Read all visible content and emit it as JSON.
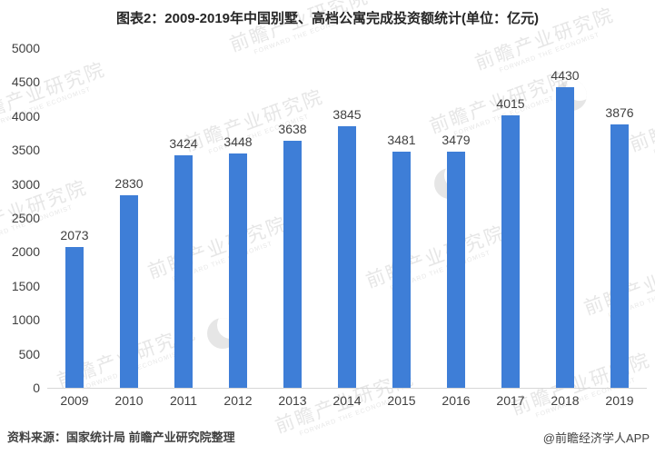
{
  "title": "图表2：2009-2019年中国别墅、高档公寓完成投资额统计(单位：亿元)",
  "chart_data": {
    "type": "bar",
    "categories": [
      "2009",
      "2010",
      "2011",
      "2012",
      "2013",
      "2014",
      "2015",
      "2016",
      "2017",
      "2018",
      "2019"
    ],
    "values": [
      2073,
      2830,
      3424,
      3448,
      3638,
      3845,
      3481,
      3479,
      4015,
      4430,
      3876
    ],
    "title": "图表2：2009-2019年中国别墅、高档公寓完成投资额统计(单位：亿元)",
    "xlabel": "",
    "ylabel": "",
    "ylim": [
      0,
      5000
    ],
    "ytick_step": 500,
    "grid": false,
    "legend": "none",
    "value_labels": true,
    "bar_color": "#3e7ed7"
  },
  "footer": {
    "source": "资料来源：国家统计局 前瞻产业研究院整理",
    "credit": "@前瞻经济学人APP"
  },
  "watermark": {
    "text": "前瞻产业研究院",
    "subtext": "FORWARD  THE  ECONOMIST"
  }
}
